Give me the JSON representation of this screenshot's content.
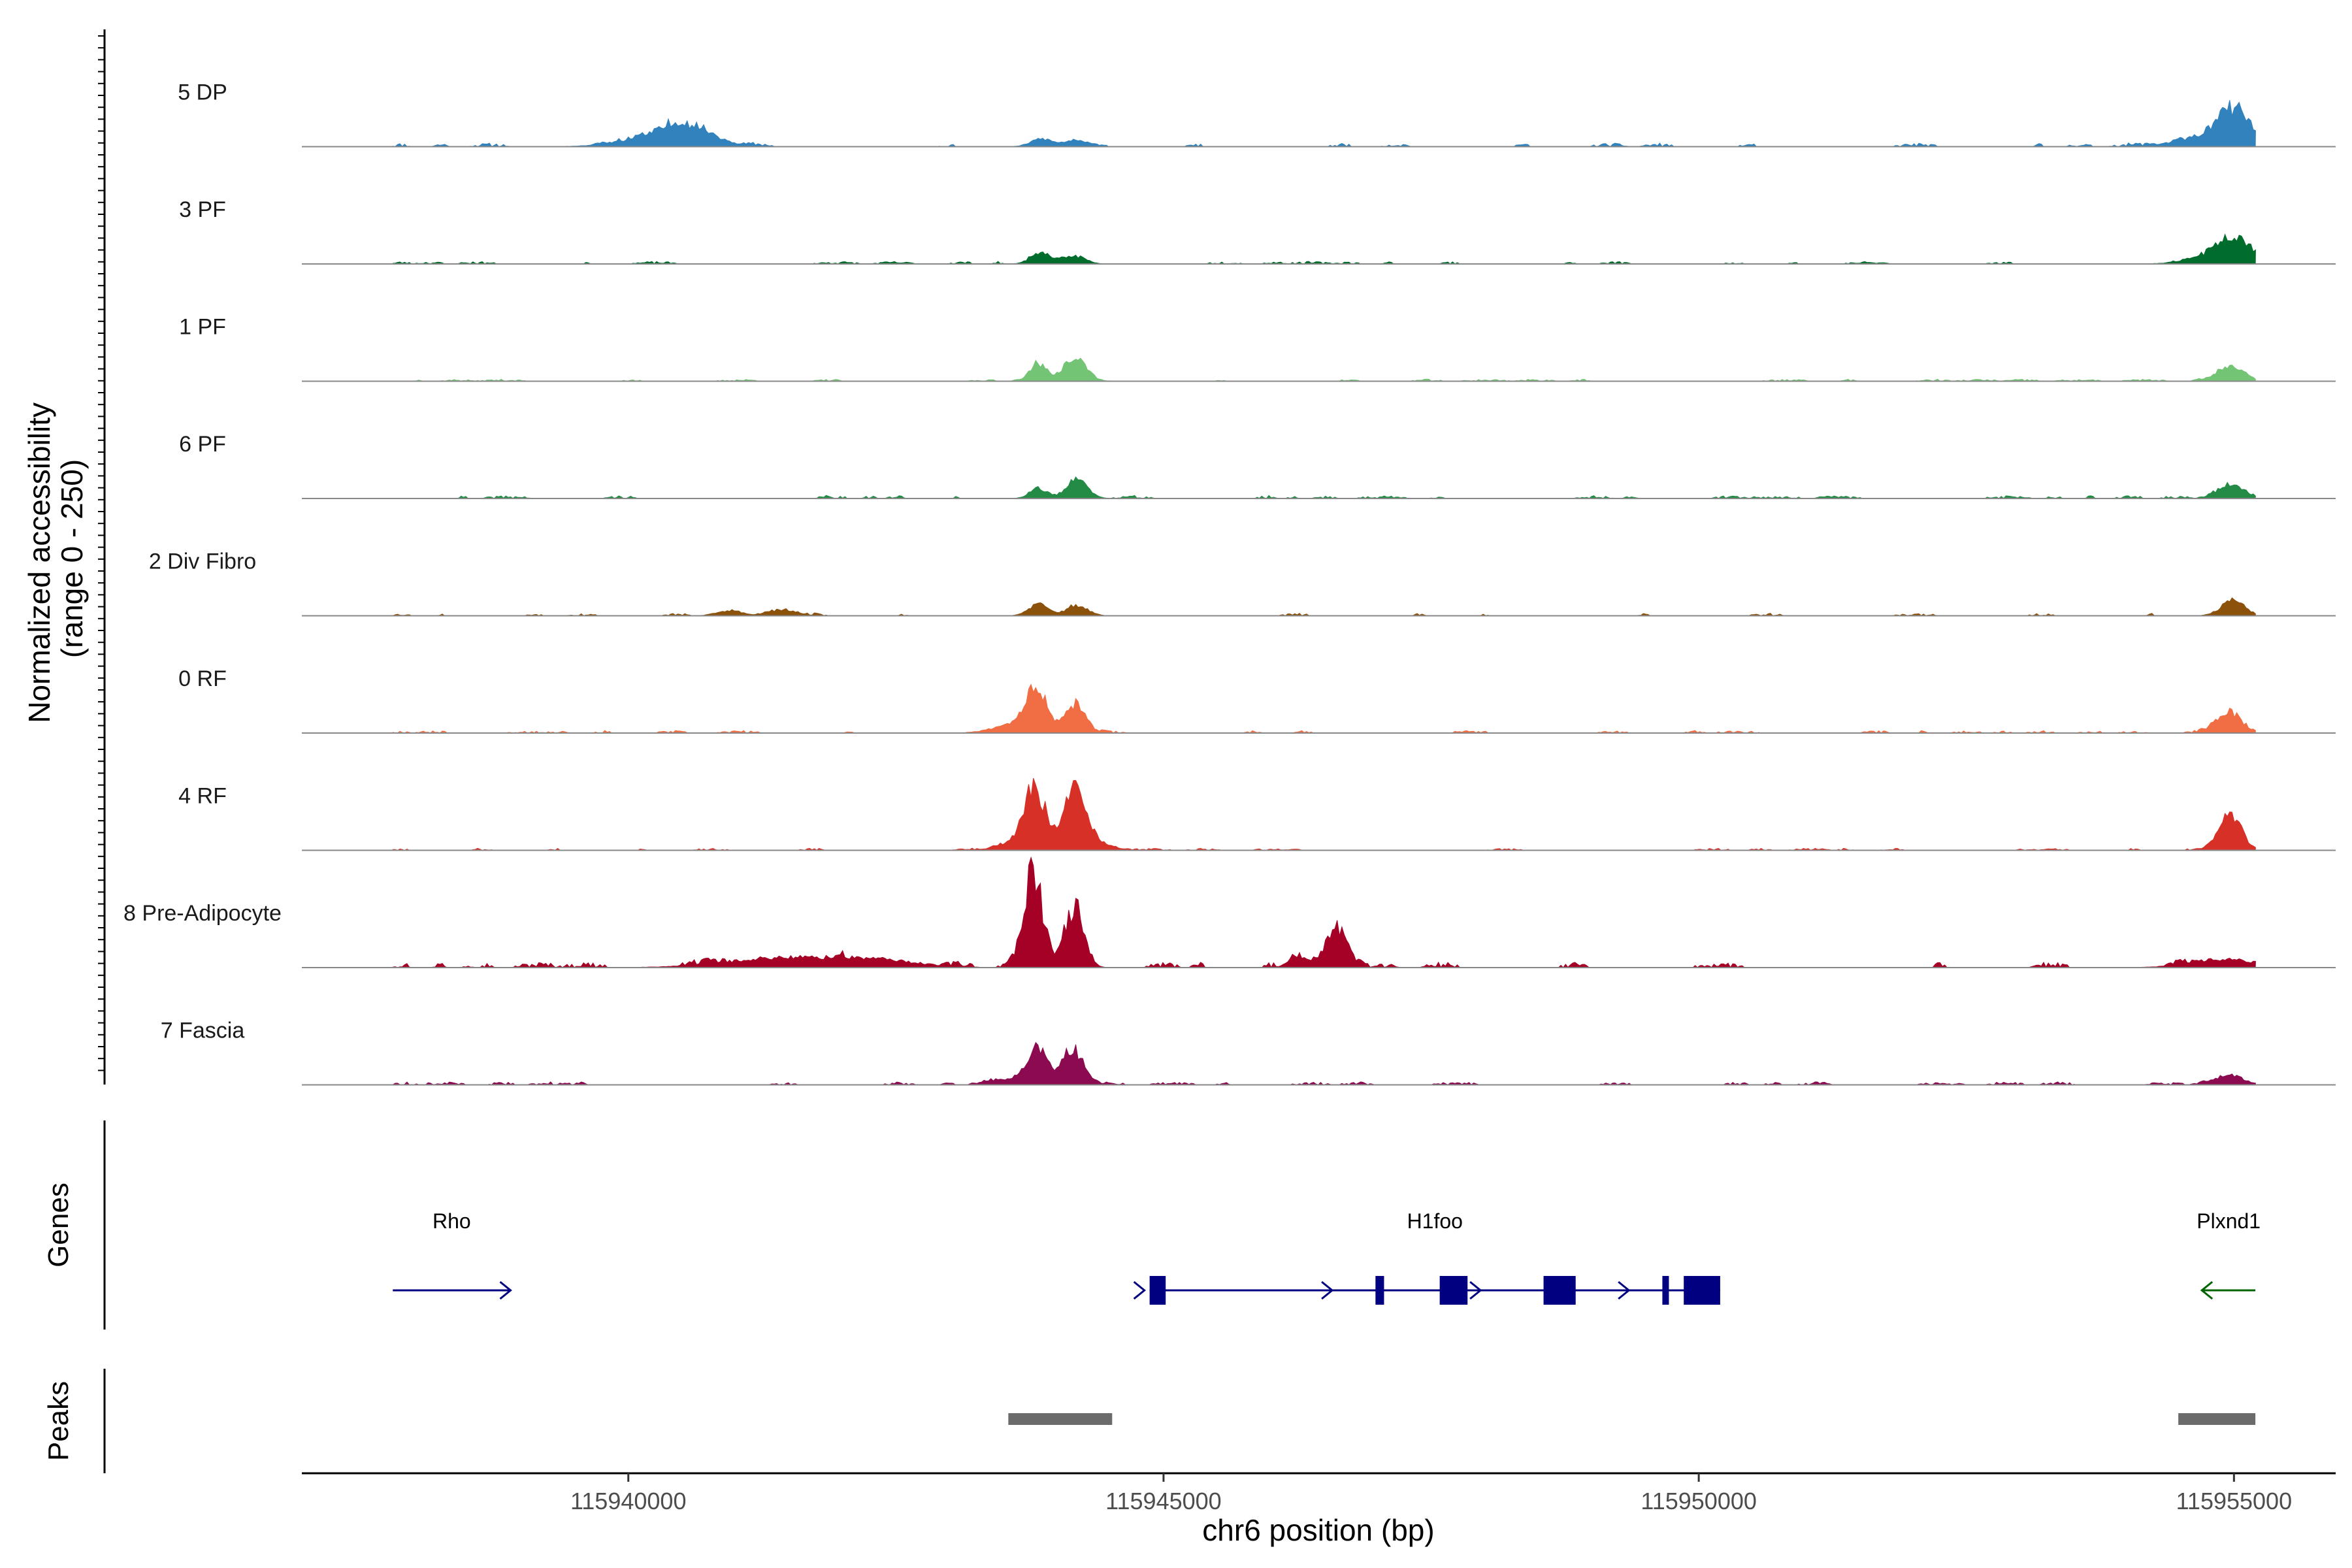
{
  "chart_data": {
    "type": "area",
    "title": "",
    "ylabel": "Normalized accessibility\n(range 0 - 250)",
    "ylabel_lines": [
      "Normalized accessibility",
      "(range 0 - 250)"
    ],
    "ylim": [
      0,
      250
    ],
    "xlabel": "chr6 position (bp)",
    "chromosome": "chr6",
    "xlim": [
      115936950,
      115955950
    ],
    "xticks": [
      115940000,
      115945000,
      115950000,
      115955000
    ],
    "xtick_labels": [
      "115940000",
      "115945000",
      "115950000",
      "115955000"
    ],
    "region": [
      115937800,
      115955200
    ],
    "tracks": [
      {
        "name": "5 DP",
        "color": "#3182bd",
        "noise": 7,
        "noise_density": 0.55,
        "seed": 11,
        "peaks": [
          [
            115940350,
            350,
            20
          ],
          [
            115940560,
            220,
            28
          ],
          [
            115943860,
            100,
            15
          ],
          [
            115944170,
            100,
            12
          ],
          [
            115955000,
            150,
            60
          ],
          [
            115954800,
            300,
            18
          ]
        ]
      },
      {
        "name": "3 PF",
        "color": "#006d2c",
        "noise": 5,
        "noise_density": 0.45,
        "seed": 23,
        "peaks": [
          [
            115943850,
            90,
            22
          ],
          [
            115944170,
            100,
            15
          ],
          [
            115955000,
            160,
            45
          ],
          [
            115954850,
            250,
            12
          ]
        ]
      },
      {
        "name": "1 PF",
        "color": "#74c476",
        "noise": 4,
        "noise_density": 0.45,
        "seed": 37,
        "peaks": [
          [
            115943830,
            80,
            32
          ],
          [
            115944170,
            110,
            42
          ],
          [
            115954970,
            120,
            32
          ]
        ]
      },
      {
        "name": "6 PF",
        "color": "#238b45",
        "noise": 6,
        "noise_density": 0.6,
        "seed": 41,
        "peaks": [
          [
            115943830,
            80,
            20
          ],
          [
            115944190,
            100,
            35
          ],
          [
            115954970,
            120,
            24
          ]
        ]
      },
      {
        "name": "2 Div Fibro",
        "color": "#8c510a",
        "noise": 5,
        "noise_density": 0.5,
        "seed": 53,
        "peaks": [
          [
            115943830,
            90,
            22
          ],
          [
            115944190,
            100,
            20
          ],
          [
            115954990,
            110,
            28
          ],
          [
            115940950,
            120,
            10
          ],
          [
            115941450,
            130,
            10
          ]
        ]
      },
      {
        "name": "0 RF",
        "color": "#f16d43",
        "noise": 5,
        "noise_density": 0.55,
        "seed": 67,
        "peaks": [
          [
            115943800,
            100,
            90
          ],
          [
            115944160,
            100,
            55
          ],
          [
            115943550,
            180,
            12
          ],
          [
            115954950,
            120,
            40
          ]
        ]
      },
      {
        "name": "4 RF",
        "color": "#d73027",
        "noise": 4,
        "noise_density": 0.5,
        "seed": 79,
        "peaks": [
          [
            115943800,
            100,
            115
          ],
          [
            115944170,
            100,
            118
          ],
          [
            115954960,
            110,
            65
          ],
          [
            115943580,
            150,
            12
          ],
          [
            115944400,
            140,
            12
          ]
        ]
      },
      {
        "name": "8 Pre-Adipocyte",
        "color": "#a50026",
        "noise": 11,
        "noise_density": 0.55,
        "seed": 97,
        "peaks": [
          [
            115943780,
            90,
            180
          ],
          [
            115944170,
            90,
            110
          ],
          [
            115946620,
            100,
            72
          ],
          [
            115946250,
            80,
            25
          ],
          [
            115941400,
            500,
            18
          ],
          [
            115942300,
            400,
            14
          ],
          [
            115954900,
            300,
            16
          ]
        ]
      },
      {
        "name": "7 Fascia",
        "color": "#8b0a50",
        "noise": 6,
        "noise_density": 0.55,
        "seed": 113,
        "peaks": [
          [
            115943820,
            90,
            75
          ],
          [
            115944150,
            100,
            70
          ],
          [
            115954950,
            140,
            18
          ],
          [
            115943550,
            150,
            10
          ]
        ]
      }
    ],
    "genes": [
      {
        "name": "Rho",
        "strand": "+",
        "color": "#000080",
        "start": 115937800,
        "end": 115938900,
        "exons": []
      },
      {
        "name": "H1foo",
        "strand": "+",
        "color": "#000080",
        "start": 115944870,
        "end": 115950200,
        "exons": [
          [
            115944870,
            115945020
          ],
          [
            115946980,
            115947060
          ],
          [
            115947580,
            115947840
          ],
          [
            115948550,
            115948850
          ],
          [
            115949660,
            115949720
          ],
          [
            115949860,
            115950200
          ]
        ]
      },
      {
        "name": "Plxnd1",
        "strand": "-",
        "color": "#006400",
        "start": 115954700,
        "end": 115955200,
        "exons": []
      }
    ],
    "peaks": [
      [
        115943550,
        115944520
      ],
      [
        115954480,
        115955200
      ]
    ],
    "panels": [
      "Genes",
      "Peaks"
    ]
  }
}
